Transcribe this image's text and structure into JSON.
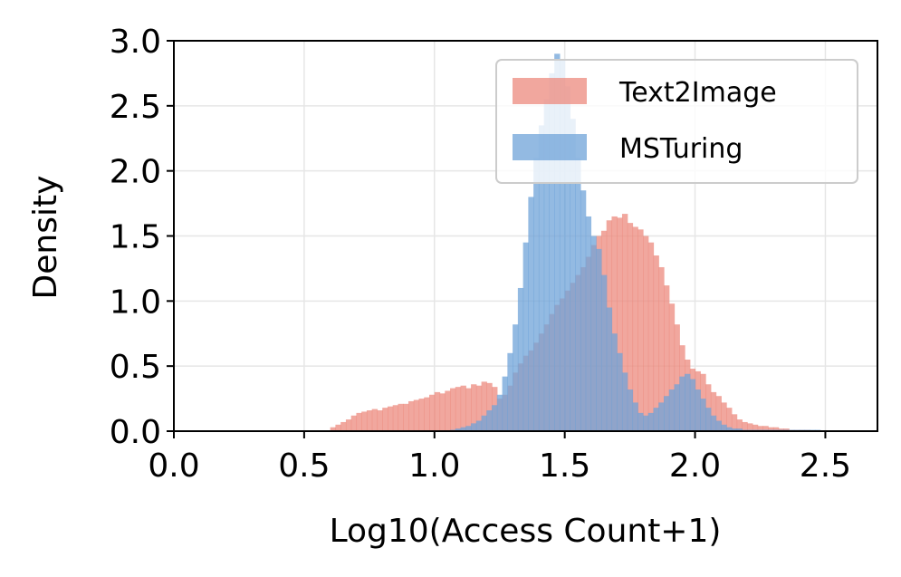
{
  "chart_data": {
    "type": "histogram",
    "xlabel": "Log10(Access Count+1)",
    "ylabel": "Density",
    "xlim": [
      0.0,
      2.7
    ],
    "ylim": [
      0.0,
      3.0
    ],
    "x_ticks": [
      "0.0",
      "0.5",
      "1.0",
      "1.5",
      "2.0",
      "2.5"
    ],
    "x_tick_values": [
      0.0,
      0.5,
      1.0,
      1.5,
      2.0,
      2.5
    ],
    "y_ticks": [
      "0.0",
      "0.5",
      "1.0",
      "1.5",
      "2.0",
      "2.5",
      "3.0"
    ],
    "y_tick_values": [
      0.0,
      0.5,
      1.0,
      1.5,
      2.0,
      2.5,
      3.0
    ],
    "grid": true,
    "legend_position": "top-right",
    "bin_start": 0.6,
    "bin_width": 0.02,
    "series": [
      {
        "name": "Text2Image",
        "color": "#ec8a7e",
        "opacity": 0.75,
        "values": [
          0.03,
          0.05,
          0.07,
          0.09,
          0.12,
          0.14,
          0.15,
          0.16,
          0.17,
          0.16,
          0.18,
          0.19,
          0.2,
          0.21,
          0.21,
          0.23,
          0.24,
          0.25,
          0.26,
          0.28,
          0.3,
          0.29,
          0.31,
          0.33,
          0.34,
          0.35,
          0.33,
          0.36,
          0.35,
          0.38,
          0.37,
          0.34,
          0.25,
          0.28,
          0.35,
          0.45,
          0.52,
          0.58,
          0.62,
          0.68,
          0.75,
          0.82,
          0.9,
          0.97,
          1.02,
          1.08,
          1.14,
          1.2,
          1.26,
          1.34,
          1.43,
          1.5,
          1.54,
          1.62,
          1.65,
          1.64,
          1.67,
          1.6,
          1.57,
          1.55,
          1.5,
          1.45,
          1.35,
          1.26,
          1.12,
          0.98,
          0.82,
          0.66,
          0.55,
          0.48,
          0.46,
          0.44,
          0.36,
          0.3,
          0.27,
          0.22,
          0.18,
          0.13,
          0.09,
          0.07,
          0.06,
          0.05,
          0.04,
          0.04,
          0.03,
          0.03,
          0.02,
          0.02,
          0.01,
          0.01,
          0.01,
          0.01,
          0.0,
          0.0,
          0.0
        ]
      },
      {
        "name": "MSTuring",
        "color": "#6fa3d8",
        "opacity": 0.75,
        "values": [
          0.0,
          0.0,
          0.0,
          0.0,
          0.0,
          0.0,
          0.0,
          0.0,
          0.0,
          0.0,
          0.0,
          0.0,
          0.0,
          0.0,
          0.0,
          0.0,
          0.0,
          0.0,
          0.0,
          0.0,
          0.0,
          0.0,
          0.0,
          0.01,
          0.02,
          0.03,
          0.04,
          0.06,
          0.08,
          0.12,
          0.16,
          0.2,
          0.28,
          0.42,
          0.6,
          0.82,
          1.1,
          1.45,
          1.8,
          2.1,
          2.35,
          2.55,
          2.75,
          2.9,
          2.85,
          2.65,
          2.4,
          2.1,
          1.85,
          1.65,
          1.5,
          1.4,
          1.2,
          0.95,
          0.75,
          0.6,
          0.45,
          0.32,
          0.22,
          0.14,
          0.12,
          0.14,
          0.18,
          0.22,
          0.27,
          0.32,
          0.36,
          0.42,
          0.44,
          0.4,
          0.32,
          0.25,
          0.18,
          0.12,
          0.08,
          0.05,
          0.03,
          0.02,
          0.02,
          0.01,
          0.01,
          0.01,
          0.01,
          0.01,
          0.01,
          0.01,
          0.01,
          0.01,
          0.01,
          0.01,
          0.01,
          0.01,
          0.01,
          0.01,
          0.0
        ]
      }
    ]
  }
}
